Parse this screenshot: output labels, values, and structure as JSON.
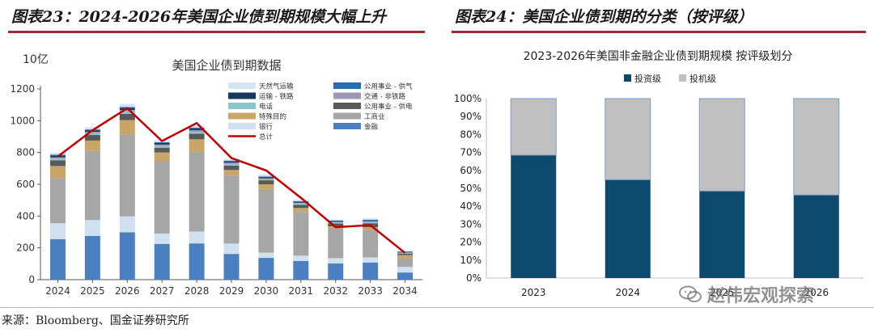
{
  "figures": {
    "left_title": "图表23：2024-2026年美国企业债到期规模大幅上升",
    "right_title": "图表24：美国企业债到期的分类（按评级）"
  },
  "source": "来源：Bloomberg、国金证券研究所",
  "watermark": "赵伟宏观探索",
  "colors": {
    "accent_rule": "#9e2b2b",
    "total_line": "#c00000",
    "invest_grade": "#0e4a6e",
    "spec_grade": "#c0c0c0"
  },
  "chart_data": [
    {
      "type": "bar",
      "stacked": true,
      "title": "美国企业债到期数据",
      "unit": "10亿",
      "categories": [
        "2024",
        "2025",
        "2026",
        "2027",
        "2028",
        "2029",
        "2030",
        "2031",
        "2032",
        "2033",
        "2034"
      ],
      "ylim": [
        0,
        1200
      ],
      "yticks": [
        0,
        200,
        400,
        600,
        800,
        1000,
        1200
      ],
      "series": [
        {
          "name": "金融",
          "color": "#4a7fc1",
          "values": [
            255,
            275,
            298,
            225,
            228,
            162,
            137,
            118,
            102,
            108,
            45
          ]
        },
        {
          "name": "银行",
          "color": "#cfe0f1",
          "values": [
            100,
            100,
            100,
            65,
            75,
            65,
            33,
            33,
            33,
            32,
            35
          ]
        },
        {
          "name": "工商业",
          "color": "#a6a6a6",
          "values": [
            285,
            435,
            515,
            455,
            500,
            428,
            400,
            275,
            185,
            170,
            55
          ]
        },
        {
          "name": "特殊目的",
          "color": "#c9a567",
          "values": [
            75,
            65,
            90,
            55,
            80,
            35,
            30,
            25,
            15,
            20,
            20
          ]
        },
        {
          "name": "公用事业 - 供电",
          "color": "#595959",
          "values": [
            35,
            35,
            40,
            30,
            35,
            28,
            25,
            20,
            18,
            25,
            8
          ]
        },
        {
          "name": "电话",
          "color": "#8cc4cc",
          "values": [
            12,
            12,
            15,
            12,
            12,
            10,
            8,
            8,
            7,
            8,
            5
          ]
        },
        {
          "name": "交通 - 非铁路",
          "color": "#9e98b5",
          "values": [
            8,
            8,
            10,
            8,
            10,
            8,
            5,
            5,
            4,
            5,
            3
          ]
        },
        {
          "name": "运输 - 铁路",
          "color": "#17375e",
          "values": [
            10,
            10,
            12,
            10,
            10,
            8,
            7,
            6,
            5,
            5,
            4
          ]
        },
        {
          "name": "公用事业 - 供气",
          "color": "#2a6bb5",
          "values": [
            6,
            5,
            6,
            5,
            6,
            5,
            4,
            4,
            3,
            4,
            2
          ]
        },
        {
          "name": "天然气运输",
          "color": "#d3e4f3",
          "values": [
            12,
            15,
            20,
            12,
            14,
            10,
            12,
            10,
            8,
            10,
            5
          ]
        }
      ],
      "total": {
        "name": "总计",
        "color": "#c00000",
        "values": [
          775,
          940,
          1078,
          872,
          985,
          765,
          687,
          515,
          330,
          343,
          168
        ]
      }
    },
    {
      "type": "bar",
      "stacked": true,
      "percent": true,
      "title": "2023-2026年美国非金融企业债到期规模 按评级划分",
      "categories": [
        "2023",
        "2024",
        "2025",
        "2026"
      ],
      "ylim": [
        0,
        100
      ],
      "yticks": [
        "0%",
        "10%",
        "20%",
        "30%",
        "40%",
        "50%",
        "60%",
        "70%",
        "80%",
        "90%",
        "100%"
      ],
      "series": [
        {
          "name": "投资级",
          "color": "#0e4a6e",
          "values": [
            68.5,
            54.8,
            48.5,
            46.3
          ]
        },
        {
          "name": "投机级",
          "color": "#c0c0c0",
          "values": [
            31.5,
            45.2,
            51.5,
            53.7
          ]
        }
      ]
    }
  ]
}
